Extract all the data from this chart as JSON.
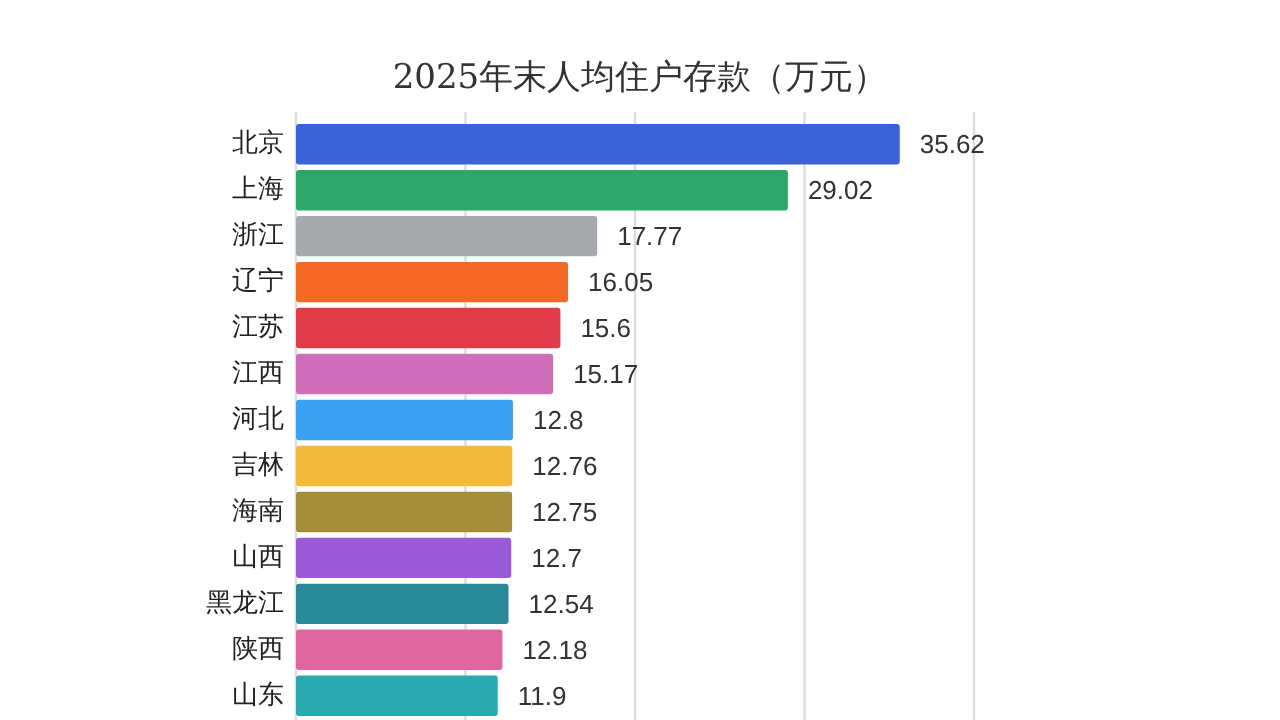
{
  "chart_data": {
    "type": "bar",
    "orientation": "horizontal",
    "title": "2025年末人均住户存款（万元）",
    "categories": [
      "北京",
      "上海",
      "浙江",
      "辽宁",
      "江苏",
      "江西",
      "河北",
      "吉林",
      "海南",
      "山西",
      "黑龙江",
      "陕西",
      "山东"
    ],
    "values": [
      35.62,
      29.02,
      17.77,
      16.05,
      15.6,
      15.17,
      12.8,
      12.76,
      12.75,
      12.7,
      12.54,
      12.18,
      11.9
    ],
    "colors": [
      "#3a63d8",
      "#2ea86a",
      "#a8a9ad",
      "#f46a25",
      "#e03c4a",
      "#cf6db8",
      "#3aa0f0",
      "#f4b93a",
      "#a58e3a",
      "#9a5ad8",
      "#2a8a9a",
      "#e066a0",
      "#2aa8b0"
    ],
    "xlim": [
      0,
      40
    ],
    "xticks": [
      {
        "value": 0,
        "label": null
      },
      {
        "value": 10,
        "label": null
      },
      {
        "value": 20,
        "label": null
      },
      {
        "value": 30,
        "label": null
      },
      {
        "value": 40,
        "label": null
      }
    ],
    "grid": "x",
    "data_labels": true
  }
}
